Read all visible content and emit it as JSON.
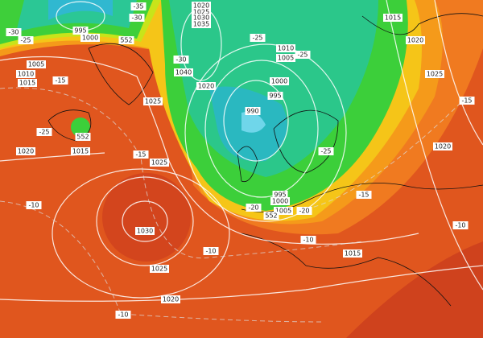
{
  "labels": [
    "995",
    "1000",
    "1005",
    "1010",
    "1015",
    "-15",
    "-25",
    "1020",
    "1015",
    "552",
    "-15",
    "1025",
    "-10",
    "1030",
    "1025",
    "-10",
    "1020",
    "-10",
    "1025",
    "1040",
    "1020",
    "-30",
    "1020",
    "1025",
    "1030",
    "1035",
    "-25",
    "1010",
    "1005",
    "-25",
    "1000",
    "995",
    "990",
    "-25",
    "995",
    "1000",
    "1005",
    "-20",
    "552",
    "-20",
    "-15",
    "-10",
    "1015",
    "1015",
    "1020",
    "1025",
    "1020",
    "-15",
    "-10",
    "-30",
    "-25",
    "-35",
    "-30",
    "552"
  ]
}
